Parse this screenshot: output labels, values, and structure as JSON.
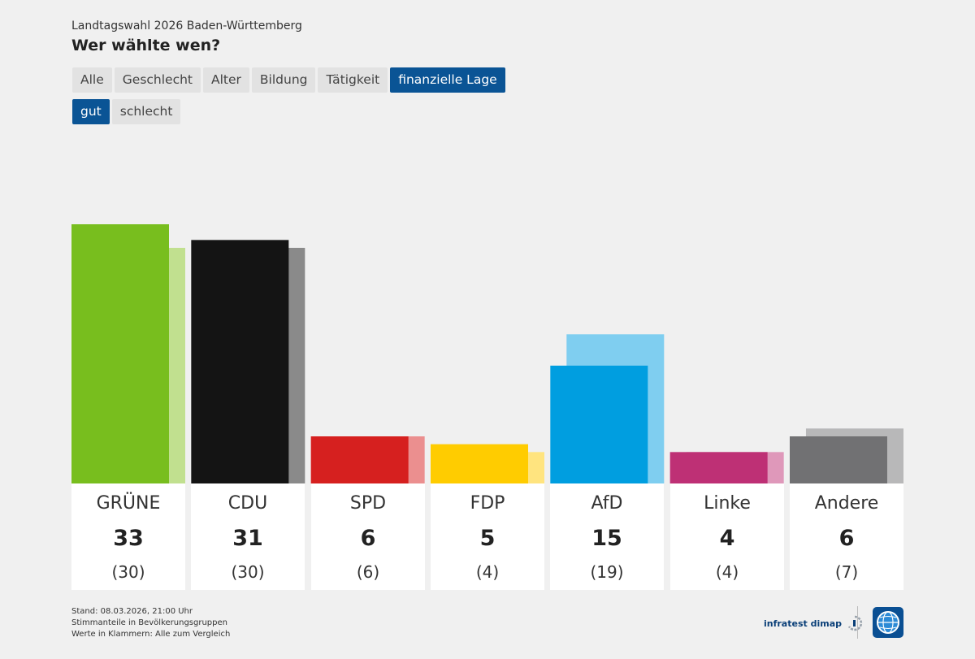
{
  "header": {
    "supertitle": "Landtagswahl 2026 Baden-Württemberg",
    "title": "Wer wählte wen?"
  },
  "tabs": [
    {
      "label": "Alle",
      "active": false
    },
    {
      "label": "Geschlecht",
      "active": false
    },
    {
      "label": "Alter",
      "active": false
    },
    {
      "label": "Bildung",
      "active": false
    },
    {
      "label": "Tätigkeit",
      "active": false
    },
    {
      "label": "finanzielle Lage",
      "active": true
    }
  ],
  "subtabs": [
    {
      "label": "gut",
      "active": true
    },
    {
      "label": "schlecht",
      "active": false
    }
  ],
  "chart_data": {
    "type": "bar",
    "title": "Wer wählte wen?",
    "categories": [
      "GRÜNE",
      "CDU",
      "SPD",
      "FDP",
      "AfD",
      "Linke",
      "Andere"
    ],
    "series": [
      {
        "name": "finanzielle Lage: gut",
        "values": [
          33,
          31,
          6,
          5,
          15,
          4,
          6
        ]
      },
      {
        "name": "Alle (zum Vergleich)",
        "values": [
          30,
          30,
          6,
          4,
          19,
          4,
          7
        ]
      }
    ],
    "value_labels": [
      "33",
      "31",
      "6",
      "5",
      "15",
      "4",
      "6"
    ],
    "comparison_labels": [
      "(30)",
      "(30)",
      "(6)",
      "(4)",
      "(19)",
      "(4)",
      "(7)"
    ],
    "colors": [
      "#78be1e",
      "#141414",
      "#d6201f",
      "#ffcc00",
      "#009ee0",
      "#be3075",
      "#717173"
    ],
    "comparison_colors": [
      "#c1e08f",
      "#8a8a8a",
      "#eb8f8f",
      "#ffe47f",
      "#7fcef0",
      "#df98ba",
      "#b8b8b9"
    ],
    "ylim": [
      0,
      33
    ],
    "grid": false,
    "xlabel": "",
    "ylabel": ""
  },
  "footer": {
    "notes": [
      "Stand: 08.03.2026, 21:00 Uhr",
      "Stimmanteile in Bevölkerungsgruppen",
      "Werte in Klammern: Alle zum Vergleich"
    ],
    "brand": "infratest dimap"
  }
}
